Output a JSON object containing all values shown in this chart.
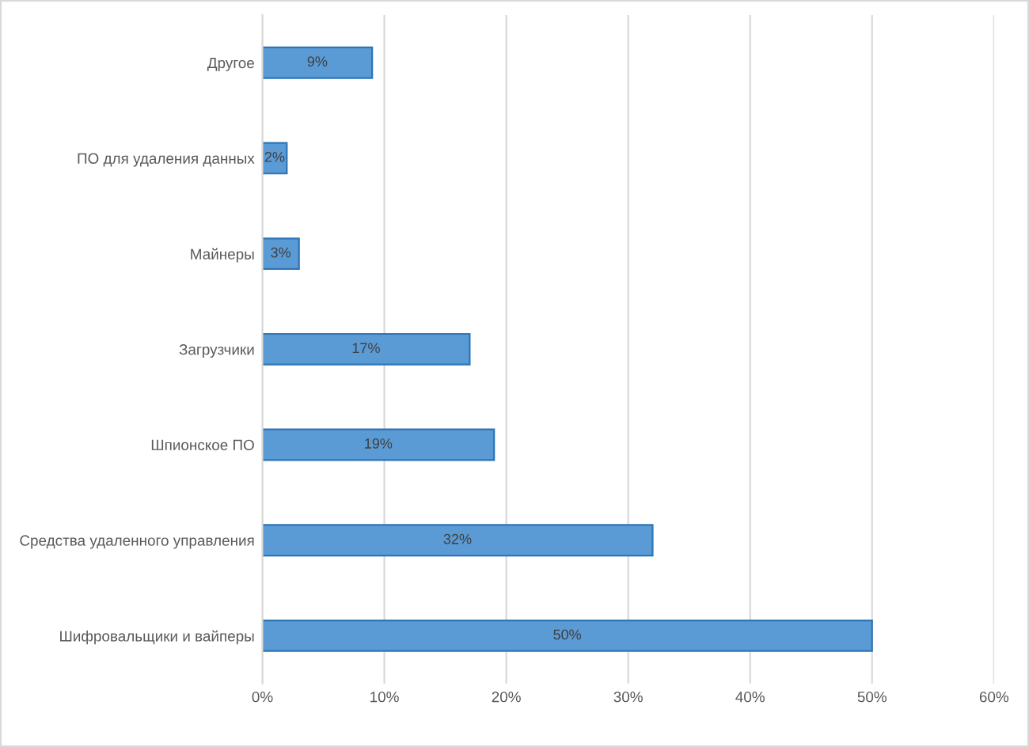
{
  "chart_data": {
    "type": "bar",
    "orientation": "horizontal",
    "categories": [
      "Другое",
      "ПО для удаления данных",
      "Майнеры",
      "Загрузчики",
      "Шпионское ПО",
      "Средства удаленного управления",
      "Шифровальщики и вайперы"
    ],
    "values": [
      9,
      2,
      3,
      17,
      19,
      32,
      50
    ],
    "value_labels": [
      "9%",
      "2%",
      "3%",
      "17%",
      "19%",
      "32%",
      "50%"
    ],
    "color": "#5b9bd5",
    "xlim": [
      0,
      60
    ],
    "xticks": [
      {
        "value": 0,
        "label": "0%"
      },
      {
        "value": 10,
        "label": "10%"
      },
      {
        "value": 20,
        "label": "20%"
      },
      {
        "value": 30,
        "label": "30%"
      },
      {
        "value": 40,
        "label": "40%"
      },
      {
        "value": 50,
        "label": "50%"
      },
      {
        "value": 60,
        "label": "60%"
      }
    ],
    "grid": "x",
    "legend": false
  }
}
